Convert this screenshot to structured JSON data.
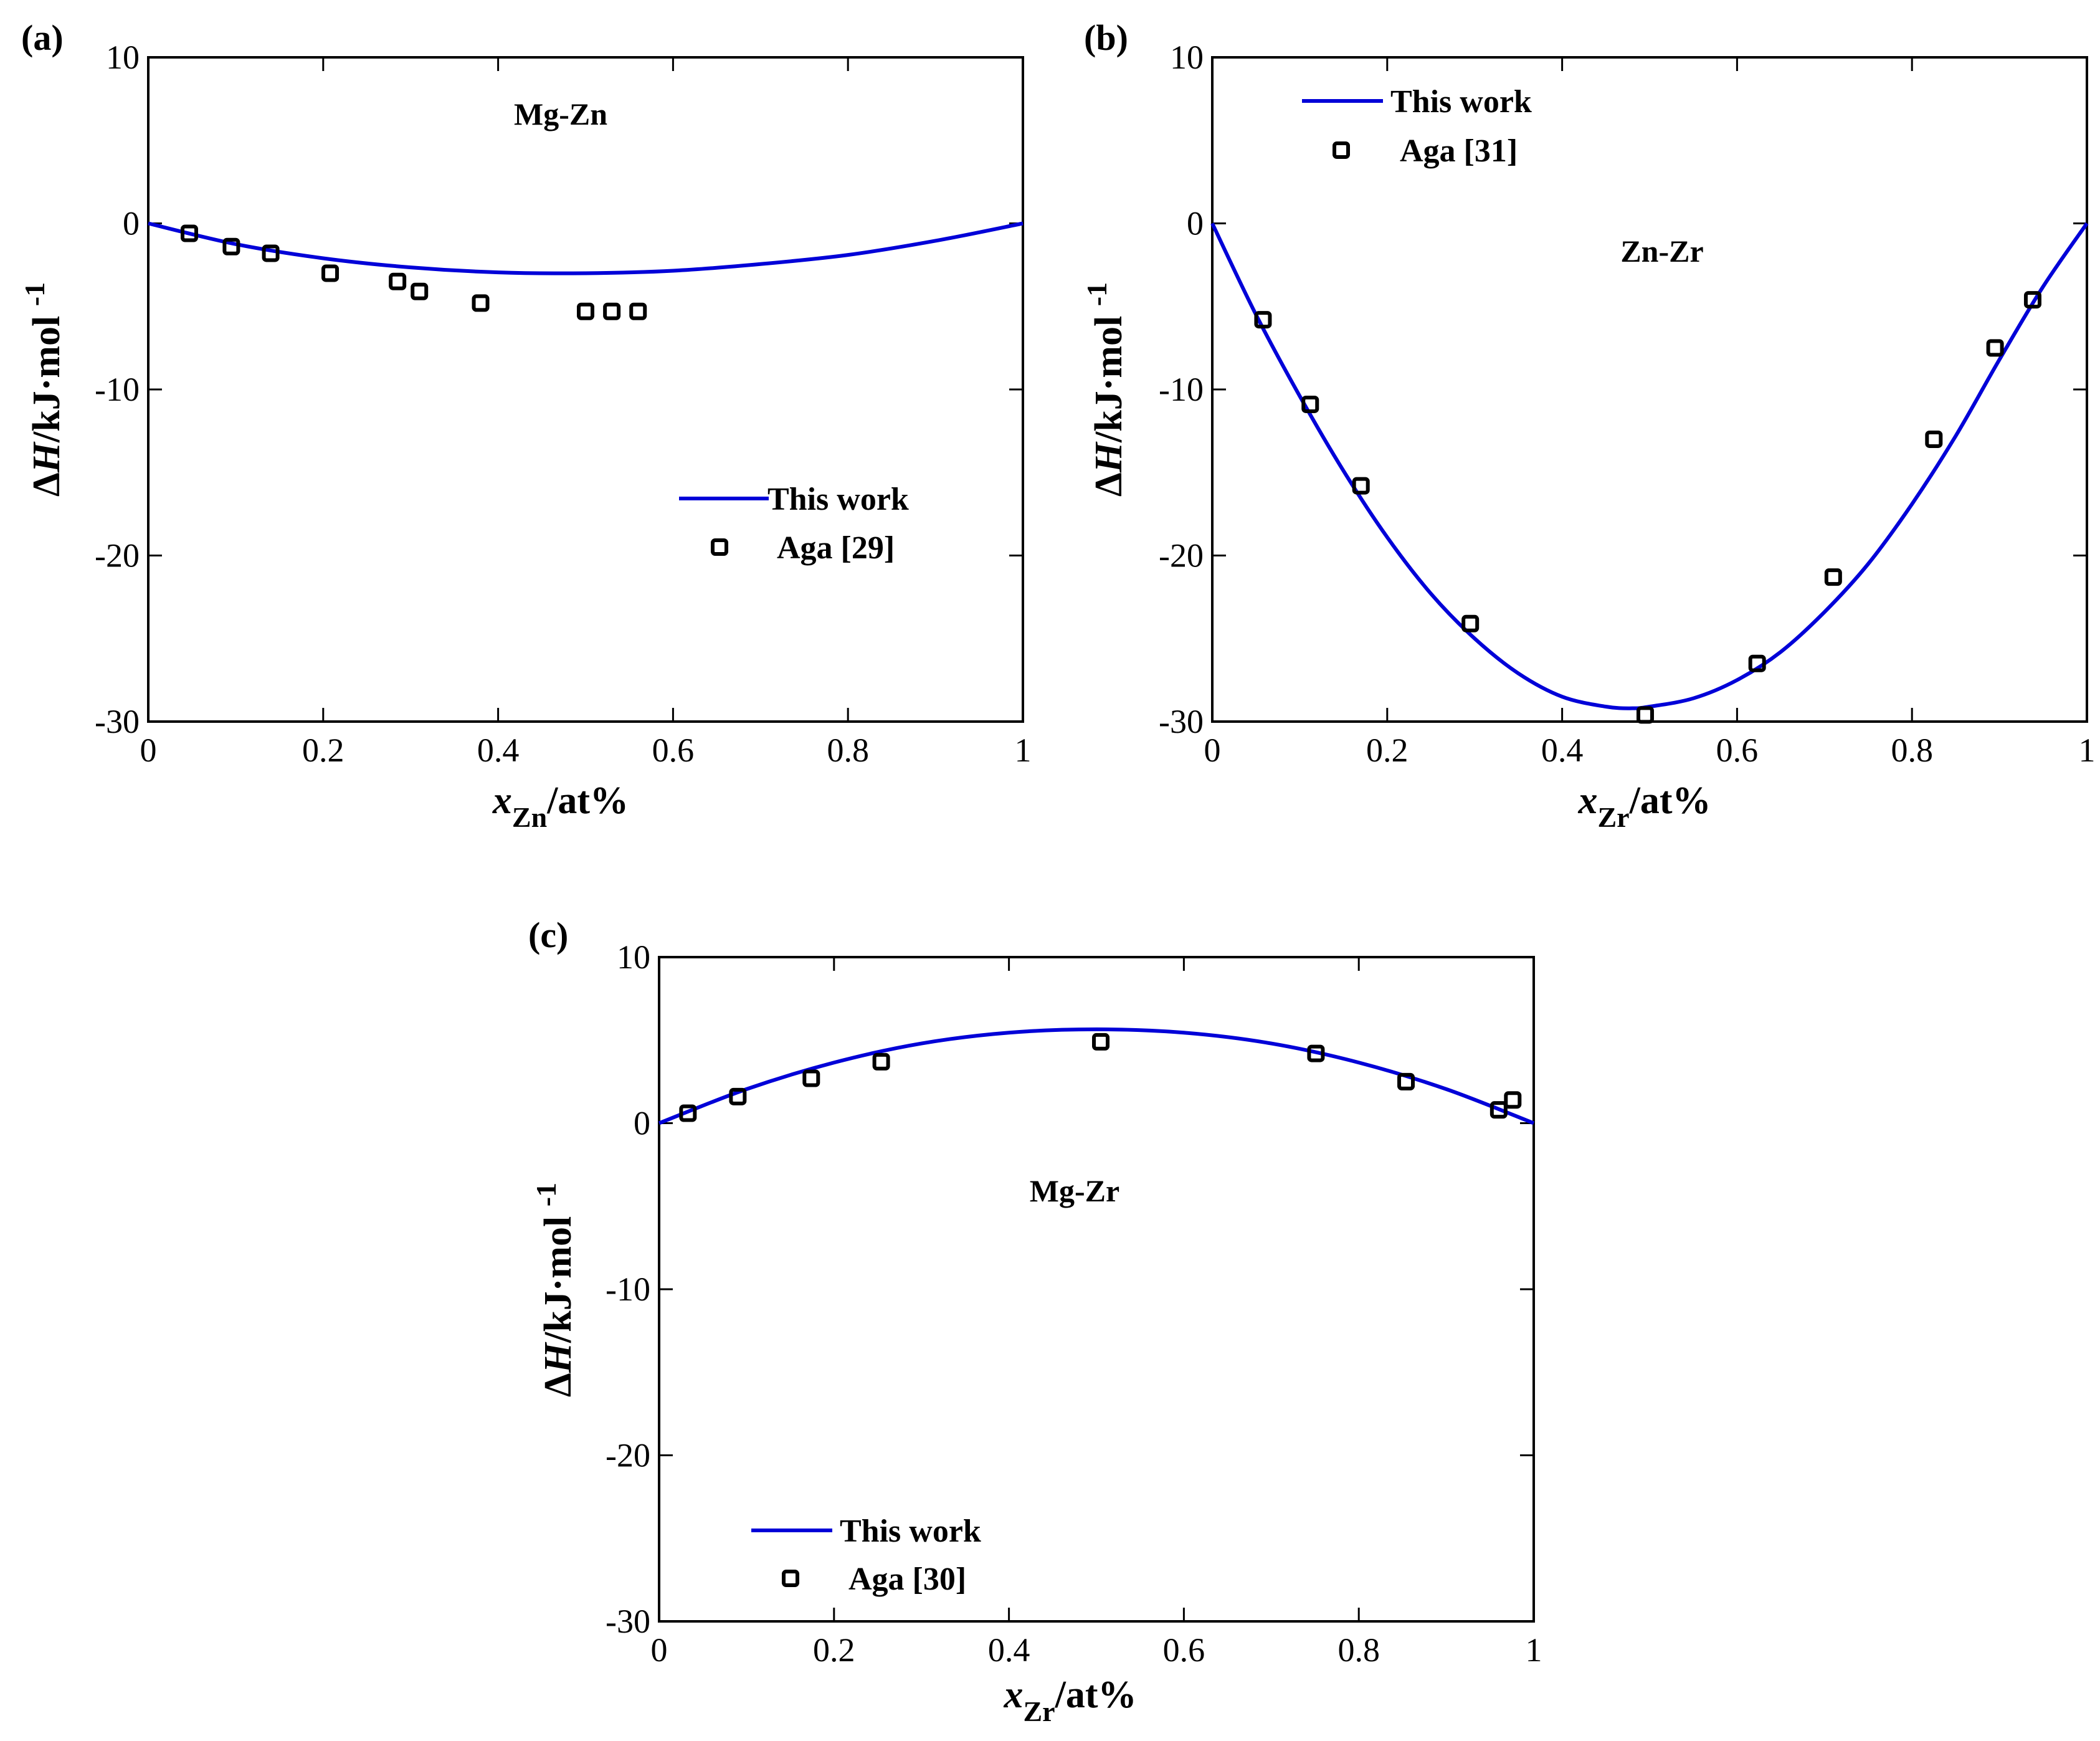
{
  "colors": {
    "model_line": "#0000d8",
    "axis": "#000000",
    "marker": "#000000"
  },
  "chart_data": [
    {
      "type": "line",
      "panel_label": "(a)",
      "system": "Mg-Zn",
      "xlabel": {
        "var": "x",
        "sub": "Zn",
        "unit": "/at%"
      },
      "ylabel": {
        "delta": "Δ",
        "var": "H",
        "unit": "/kJ·mol",
        "sup": "-1"
      },
      "xlim": [
        0,
        1
      ],
      "ylim": [
        -30,
        10
      ],
      "xticks": [
        "0",
        "0.2",
        "0.4",
        "0.6",
        "0.8",
        "1"
      ],
      "yticks": [
        "10",
        "0",
        "-10",
        "-20",
        "-30"
      ],
      "legend": {
        "position": "lower-right",
        "line_label": "This work",
        "marker_label": "Aga [29]"
      },
      "model_curve": {
        "x": [
          0,
          0.1,
          0.2,
          0.3,
          0.4,
          0.5,
          0.6,
          0.7,
          0.8,
          0.9,
          1.0
        ],
        "y": [
          0,
          -1.25,
          -2.1,
          -2.65,
          -2.95,
          -3.0,
          -2.85,
          -2.45,
          -1.9,
          -1.05,
          0
        ]
      },
      "experimental": {
        "x": [
          0.047,
          0.095,
          0.14,
          0.208,
          0.285,
          0.31,
          0.38,
          0.5,
          0.53,
          0.56
        ],
        "y": [
          -0.6,
          -1.4,
          -1.8,
          -3.0,
          -3.5,
          -4.1,
          -4.8,
          -5.3,
          -5.3,
          -5.3
        ]
      }
    },
    {
      "type": "line",
      "panel_label": "(b)",
      "system": "Zn-Zr",
      "xlabel": {
        "var": "x",
        "sub": "Zr",
        "unit": "/at%"
      },
      "ylabel": {
        "delta": "Δ",
        "var": "H",
        "unit": "/kJ·mol",
        "sup": "-1"
      },
      "xlim": [
        0,
        1
      ],
      "ylim": [
        -30,
        10
      ],
      "xticks": [
        "0",
        "0.2",
        "0.4",
        "0.6",
        "0.8",
        "1"
      ],
      "yticks": [
        "10",
        "0",
        "-10",
        "-20",
        "-30"
      ],
      "legend": {
        "position": "top-left",
        "line_label": "This work",
        "marker_label": "Aga [31]"
      },
      "model_curve": {
        "x": [
          0,
          0.05,
          0.1,
          0.15,
          0.2,
          0.25,
          0.3,
          0.35,
          0.4,
          0.45,
          0.48,
          0.5,
          0.55,
          0.6,
          0.65,
          0.7,
          0.75,
          0.8,
          0.85,
          0.9,
          0.95,
          1.0
        ],
        "y": [
          0,
          -5.5,
          -10.4,
          -14.9,
          -18.9,
          -22.3,
          -25.0,
          -27.1,
          -28.5,
          -29.1,
          -29.2,
          -29.1,
          -28.6,
          -27.5,
          -25.8,
          -23.4,
          -20.5,
          -16.9,
          -12.8,
          -8.2,
          -3.8,
          0
        ]
      },
      "experimental": {
        "x": [
          0.058,
          0.112,
          0.17,
          0.295,
          0.495,
          0.623,
          0.71,
          0.825,
          0.895,
          0.938
        ],
        "y": [
          -5.8,
          -10.9,
          -15.8,
          -24.1,
          -29.6,
          -26.5,
          -21.3,
          -13.0,
          -7.5,
          -4.6
        ]
      }
    },
    {
      "type": "line",
      "panel_label": "(c)",
      "system": "Mg-Zr",
      "xlabel": {
        "var": "x",
        "sub": "Zr",
        "unit": "/at%"
      },
      "ylabel": {
        "delta": "Δ",
        "var": "H",
        "unit": "/kJ·mol",
        "sup": "-1"
      },
      "xlim": [
        0,
        1
      ],
      "ylim": [
        -30,
        10
      ],
      "xticks": [
        "0",
        "0.2",
        "0.4",
        "0.6",
        "0.8",
        "1"
      ],
      "yticks": [
        "10",
        "0",
        "-10",
        "-20",
        "-30"
      ],
      "legend": {
        "position": "lower-left",
        "line_label": "This work",
        "marker_label": "Aga [30]"
      },
      "model_curve": {
        "x": [
          0,
          0.1,
          0.2,
          0.3,
          0.4,
          0.5,
          0.6,
          0.7,
          0.8,
          0.9,
          1.0
        ],
        "y": [
          0,
          2.05,
          3.65,
          4.8,
          5.45,
          5.65,
          5.45,
          4.8,
          3.65,
          2.05,
          0
        ]
      },
      "experimental": {
        "x": [
          0.033,
          0.09,
          0.174,
          0.254,
          0.505,
          0.751,
          0.854,
          0.96,
          0.976
        ],
        "y": [
          0.6,
          1.6,
          2.7,
          3.7,
          4.9,
          4.2,
          2.5,
          0.8,
          1.4
        ]
      }
    }
  ]
}
